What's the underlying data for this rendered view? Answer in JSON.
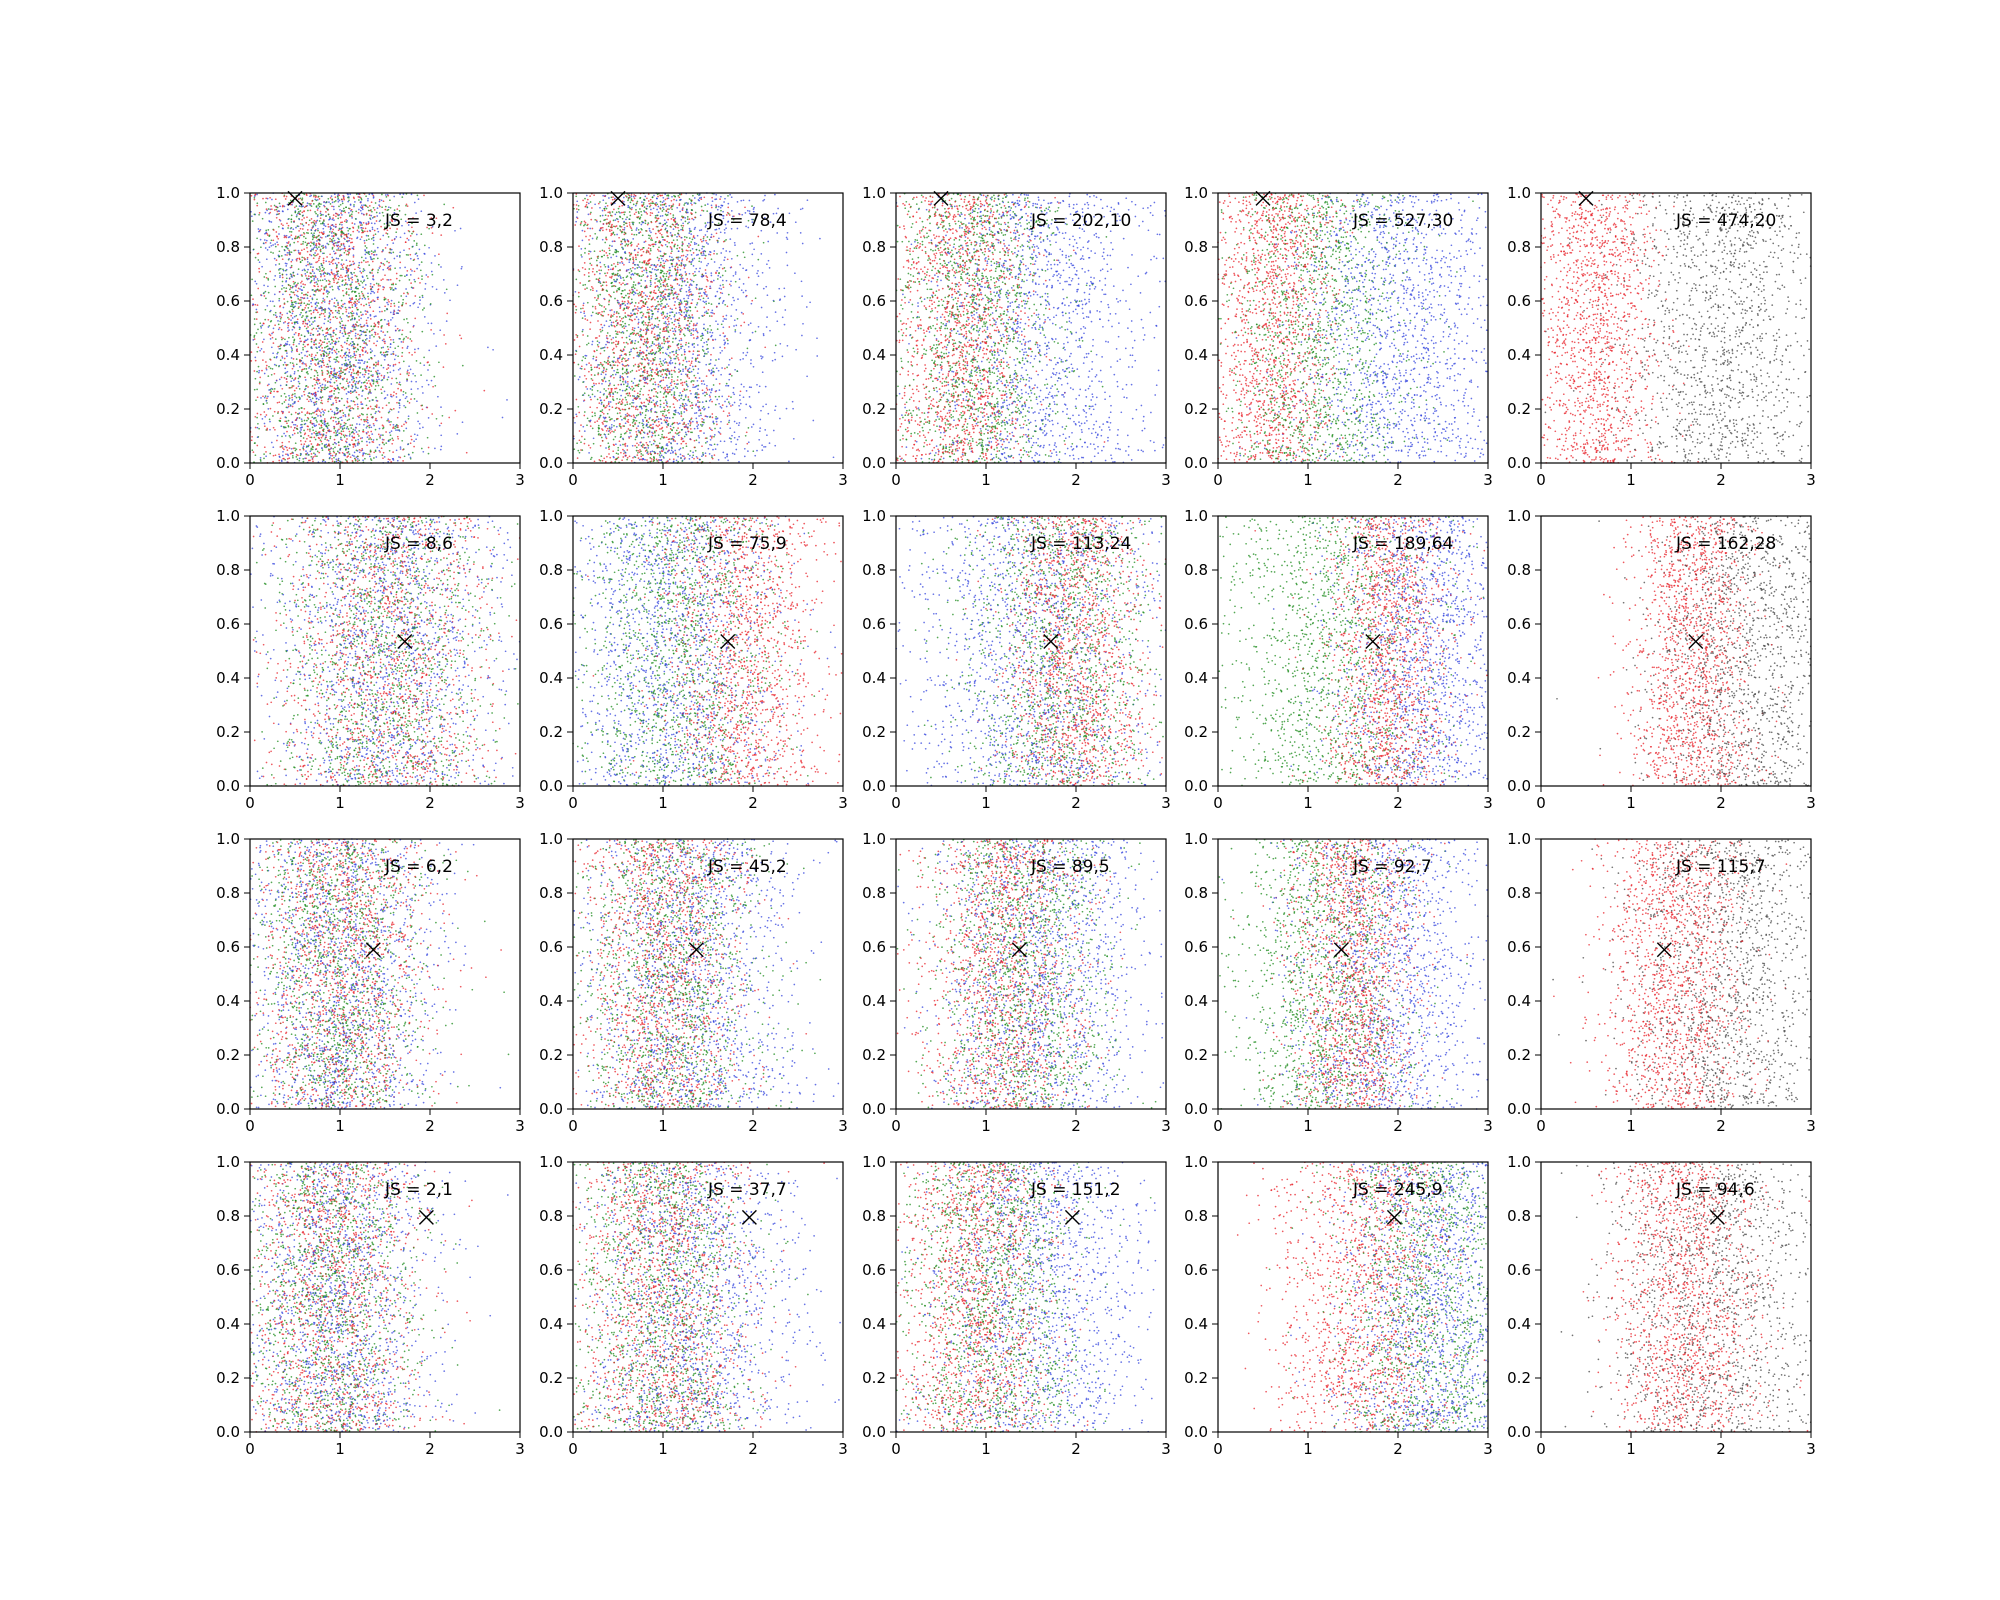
{
  "chart_data": {
    "type": "scatter",
    "layout": "4x5 grid of scatter panels",
    "xlim": [
      0,
      3
    ],
    "ylim": [
      0,
      1
    ],
    "xticks": [
      "0",
      "1",
      "2",
      "3"
    ],
    "yticks": [
      "0.0",
      "0.2",
      "0.4",
      "0.6",
      "0.8",
      "1.0"
    ],
    "grid": false,
    "legend": "none",
    "marker": {
      "symbol": "x",
      "color": "#000000"
    },
    "colors": {
      "red": "#e8222a",
      "green": "#1a8a1a",
      "blue": "#3344dd",
      "gray": "#444444"
    },
    "rows": [
      {
        "marker": {
          "x": 0.5,
          "y": 0.98
        },
        "panels": [
          {
            "annotation": "JS = 3,2",
            "series": [
              {
                "color": "red",
                "mean": 0.9,
                "sd": 0.5
              },
              {
                "color": "green",
                "mean": 0.9,
                "sd": 0.5
              },
              {
                "color": "blue",
                "mean": 0.95,
                "sd": 0.55
              }
            ]
          },
          {
            "annotation": "JS = 78,4",
            "series": [
              {
                "color": "red",
                "mean": 0.8,
                "sd": 0.45
              },
              {
                "color": "green",
                "mean": 0.8,
                "sd": 0.45
              },
              {
                "color": "blue",
                "mean": 1.2,
                "sd": 0.6
              }
            ]
          },
          {
            "annotation": "JS = 202,10",
            "series": [
              {
                "color": "red",
                "mean": 0.7,
                "sd": 0.4
              },
              {
                "color": "green",
                "mean": 0.9,
                "sd": 0.45
              },
              {
                "color": "blue",
                "mean": 1.6,
                "sd": 0.65
              }
            ]
          },
          {
            "annotation": "JS = 527,30",
            "series": [
              {
                "color": "red",
                "mean": 0.6,
                "sd": 0.35
              },
              {
                "color": "green",
                "mean": 1.1,
                "sd": 0.5
              },
              {
                "color": "blue",
                "mean": 2.0,
                "sd": 0.6
              }
            ]
          },
          {
            "annotation": "JS = 474,20",
            "series": [
              {
                "color": "red",
                "mean": 0.6,
                "sd": 0.35
              },
              {
                "color": "gray",
                "mean": 2.0,
                "sd": 0.6
              }
            ]
          }
        ]
      },
      {
        "marker": {
          "x": 1.72,
          "y": 0.535
        },
        "panels": [
          {
            "annotation": "JS = 8,6",
            "series": [
              {
                "color": "red",
                "mean": 1.5,
                "sd": 0.6
              },
              {
                "color": "green",
                "mean": 1.5,
                "sd": 0.6
              },
              {
                "color": "blue",
                "mean": 1.5,
                "sd": 0.65
              }
            ]
          },
          {
            "annotation": "JS = 75,9",
            "series": [
              {
                "color": "red",
                "mean": 1.9,
                "sd": 0.45
              },
              {
                "color": "green",
                "mean": 1.2,
                "sd": 0.55
              },
              {
                "color": "blue",
                "mean": 1.1,
                "sd": 0.6
              }
            ]
          },
          {
            "annotation": "JS = 113,24",
            "series": [
              {
                "color": "red",
                "mean": 2.0,
                "sd": 0.4
              },
              {
                "color": "green",
                "mean": 1.8,
                "sd": 0.55
              },
              {
                "color": "blue",
                "mean": 1.5,
                "sd": 0.7
              }
            ]
          },
          {
            "annotation": "JS = 189,64",
            "series": [
              {
                "color": "red",
                "mean": 1.9,
                "sd": 0.35
              },
              {
                "color": "green",
                "mean": 1.3,
                "sd": 0.6
              },
              {
                "color": "blue",
                "mean": 2.3,
                "sd": 0.5
              }
            ]
          },
          {
            "annotation": "JS = 162,28",
            "series": [
              {
                "color": "red",
                "mean": 1.7,
                "sd": 0.35
              },
              {
                "color": "gray",
                "mean": 2.3,
                "sd": 0.55
              }
            ]
          }
        ]
      },
      {
        "marker": {
          "x": 1.37,
          "y": 0.59
        },
        "panels": [
          {
            "annotation": "JS = 6,2",
            "series": [
              {
                "color": "red",
                "mean": 1.0,
                "sd": 0.5
              },
              {
                "color": "green",
                "mean": 1.0,
                "sd": 0.5
              },
              {
                "color": "blue",
                "mean": 1.0,
                "sd": 0.55
              }
            ]
          },
          {
            "annotation": "JS = 45,2",
            "series": [
              {
                "color": "red",
                "mean": 1.0,
                "sd": 0.45
              },
              {
                "color": "green",
                "mean": 1.1,
                "sd": 0.5
              },
              {
                "color": "blue",
                "mean": 1.3,
                "sd": 0.6
              }
            ]
          },
          {
            "annotation": "JS = 89,5",
            "series": [
              {
                "color": "red",
                "mean": 1.2,
                "sd": 0.45
              },
              {
                "color": "green",
                "mean": 1.4,
                "sd": 0.5
              },
              {
                "color": "blue",
                "mean": 1.6,
                "sd": 0.6
              }
            ]
          },
          {
            "annotation": "JS = 92,7",
            "series": [
              {
                "color": "red",
                "mean": 1.5,
                "sd": 0.35
              },
              {
                "color": "green",
                "mean": 1.2,
                "sd": 0.5
              },
              {
                "color": "blue",
                "mean": 1.9,
                "sd": 0.55
              }
            ]
          },
          {
            "annotation": "JS = 115,7",
            "series": [
              {
                "color": "red",
                "mean": 1.5,
                "sd": 0.4
              },
              {
                "color": "gray",
                "mean": 2.1,
                "sd": 0.55
              }
            ]
          }
        ]
      },
      {
        "marker": {
          "x": 1.96,
          "y": 0.795
        },
        "panels": [
          {
            "annotation": "JS = 2,1",
            "series": [
              {
                "color": "red",
                "mean": 0.9,
                "sd": 0.5
              },
              {
                "color": "green",
                "mean": 0.9,
                "sd": 0.5
              },
              {
                "color": "blue",
                "mean": 0.95,
                "sd": 0.55
              }
            ]
          },
          {
            "annotation": "JS = 37,7",
            "series": [
              {
                "color": "red",
                "mean": 1.0,
                "sd": 0.5
              },
              {
                "color": "green",
                "mean": 1.0,
                "sd": 0.5
              },
              {
                "color": "blue",
                "mean": 1.3,
                "sd": 0.6
              }
            ]
          },
          {
            "annotation": "JS = 151,2",
            "series": [
              {
                "color": "red",
                "mean": 0.9,
                "sd": 0.45
              },
              {
                "color": "green",
                "mean": 1.1,
                "sd": 0.5
              },
              {
                "color": "blue",
                "mean": 1.6,
                "sd": 0.6
              }
            ]
          },
          {
            "annotation": "JS = 245,9",
            "series": [
              {
                "color": "red",
                "mean": 1.6,
                "sd": 0.5
              },
              {
                "color": "green",
                "mean": 2.3,
                "sd": 0.5
              },
              {
                "color": "blue",
                "mean": 2.4,
                "sd": 0.5
              }
            ]
          },
          {
            "annotation": "JS = 94,6",
            "series": [
              {
                "color": "red",
                "mean": 1.6,
                "sd": 0.4
              },
              {
                "color": "gray",
                "mean": 1.9,
                "sd": 0.6
              }
            ]
          }
        ]
      }
    ]
  }
}
